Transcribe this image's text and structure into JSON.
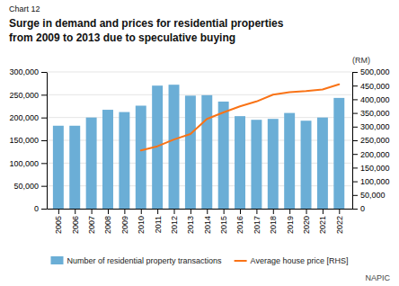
{
  "chart_data": {
    "type": "bar",
    "title": [
      "Surge in demand and prices for residential properties",
      "from 2009 to 2013 due to speculative buying"
    ],
    "annotations": [
      "Chart 12",
      "NAPIC"
    ],
    "y2label": "(RM)",
    "x": [
      2005,
      2006,
      2007,
      2008,
      2009,
      2010,
      2011,
      2012,
      2013,
      2014,
      2015,
      2016,
      2017,
      2018,
      2019,
      2020,
      2021,
      2022
    ],
    "xlim": [
      2004.3,
      2022.8
    ],
    "xticks": [
      2005,
      2006,
      2007,
      2008,
      2009,
      2010,
      2011,
      2012,
      2013,
      2014,
      2015,
      2016,
      2017,
      2018,
      2019,
      2020,
      2021,
      2022
    ],
    "ylim": [
      0,
      300000
    ],
    "yticks": [
      0,
      {
        "value": 50000,
        "label": "50,000"
      },
      {
        "value": 100000,
        "label": "100,000"
      },
      {
        "value": 150000,
        "label": "150,000"
      },
      {
        "value": 200000,
        "label": "200,000"
      },
      {
        "value": 250000,
        "label": "250,000"
      },
      {
        "value": 300000,
        "label": "300,000"
      }
    ],
    "y2lim": [
      0,
      500000
    ],
    "y2ticks": [
      0,
      {
        "value": 50000,
        "label": "50,000"
      },
      {
        "value": 100000,
        "label": "100,000"
      },
      {
        "value": 150000,
        "label": "150,000"
      },
      {
        "value": 200000,
        "label": "200,000"
      },
      {
        "value": 250000,
        "label": "250,000"
      },
      {
        "value": 300000,
        "label": "300,000"
      },
      {
        "value": 350000,
        "label": "350,000"
      },
      {
        "value": 400000,
        "label": "400,000"
      },
      {
        "value": 450000,
        "label": "450,000"
      },
      {
        "value": 500000,
        "label": "500,000"
      }
    ],
    "grid": true,
    "legend": "bottom",
    "series": [
      {
        "name": "Number of residential property transactions",
        "type": "bar",
        "color": "#6baed6",
        "values": [
          182000,
          182000,
          200000,
          217000,
          212000,
          226000,
          270000,
          272000,
          248000,
          249000,
          235000,
          203000,
          195000,
          197000,
          210000,
          193000,
          200000,
          243000
        ]
      },
      {
        "name": "Average house price [RHS]",
        "type": "line",
        "color": "#f97316",
        "axis": "y2",
        "values": [
          null,
          null,
          null,
          null,
          null,
          213000,
          228000,
          253000,
          273000,
          328000,
          352000,
          374000,
          392000,
          417000,
          426000,
          430000,
          436000,
          455000
        ]
      }
    ]
  }
}
